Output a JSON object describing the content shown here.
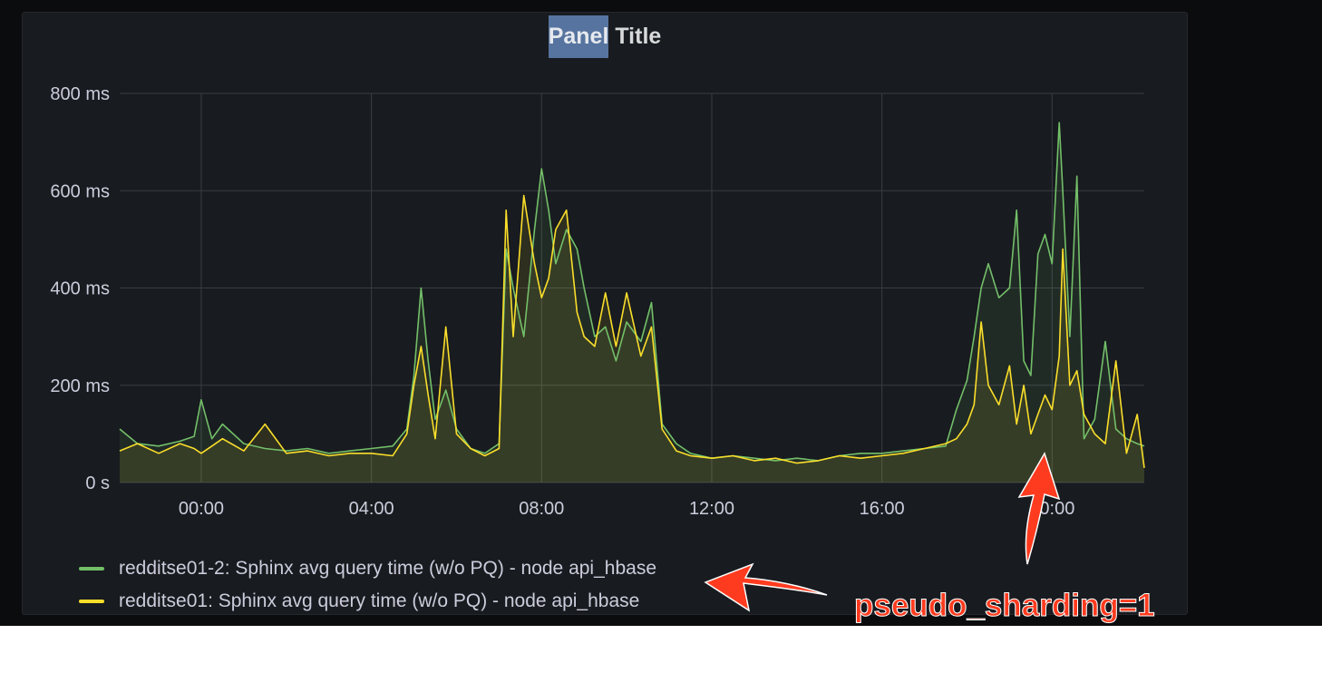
{
  "panel": {
    "title_highlight": "Panel",
    "title_rest": " Title"
  },
  "annotation": {
    "text": "pseudo_sharding=1",
    "color": "#ff3b1f"
  },
  "chart_data": {
    "type": "line",
    "y_unit": "ms",
    "ylim": [
      0,
      800
    ],
    "y_ticks": [
      {
        "value": 0,
        "label": "0 s"
      },
      {
        "value": 200,
        "label": "200 ms"
      },
      {
        "value": 400,
        "label": "400 ms"
      },
      {
        "value": 600,
        "label": "600 ms"
      },
      {
        "value": 800,
        "label": "800 ms"
      }
    ],
    "xlim": [
      "-01:55",
      "22:10"
    ],
    "x_ticks": [
      "00:00",
      "04:00",
      "08:00",
      "12:00",
      "16:00",
      "20:00"
    ],
    "grid": true,
    "fill": "area",
    "legend_position": "bottom-left",
    "series": [
      {
        "name": "redditse01-2: Sphinx avg query time (w/o PQ) - node api_hbase",
        "color": "#73bf69",
        "points": [
          [
            "-01:55",
            110
          ],
          [
            "-01:30",
            80
          ],
          [
            "-01:00",
            75
          ],
          [
            "-00:30",
            85
          ],
          [
            "-00:10",
            95
          ],
          [
            "00:00",
            170
          ],
          [
            "00:15",
            90
          ],
          [
            "00:30",
            120
          ],
          [
            "01:00",
            80
          ],
          [
            "01:30",
            70
          ],
          [
            "02:00",
            65
          ],
          [
            "02:30",
            70
          ],
          [
            "03:00",
            60
          ],
          [
            "03:30",
            65
          ],
          [
            "04:00",
            70
          ],
          [
            "04:30",
            75
          ],
          [
            "04:50",
            110
          ],
          [
            "05:00",
            220
          ],
          [
            "05:10",
            400
          ],
          [
            "05:20",
            250
          ],
          [
            "05:30",
            130
          ],
          [
            "05:45",
            190
          ],
          [
            "06:00",
            110
          ],
          [
            "06:20",
            70
          ],
          [
            "06:40",
            60
          ],
          [
            "07:00",
            80
          ],
          [
            "07:10",
            480
          ],
          [
            "07:20",
            400
          ],
          [
            "07:35",
            300
          ],
          [
            "07:50",
            520
          ],
          [
            "08:00",
            645
          ],
          [
            "08:10",
            560
          ],
          [
            "08:20",
            450
          ],
          [
            "08:35",
            520
          ],
          [
            "08:50",
            480
          ],
          [
            "09:00",
            400
          ],
          [
            "09:15",
            300
          ],
          [
            "09:30",
            320
          ],
          [
            "09:45",
            250
          ],
          [
            "10:00",
            330
          ],
          [
            "10:20",
            290
          ],
          [
            "10:35",
            370
          ],
          [
            "10:50",
            120
          ],
          [
            "11:10",
            80
          ],
          [
            "11:30",
            60
          ],
          [
            "12:00",
            50
          ],
          [
            "12:30",
            55
          ],
          [
            "13:00",
            50
          ],
          [
            "13:30",
            45
          ],
          [
            "14:00",
            50
          ],
          [
            "14:30",
            45
          ],
          [
            "15:00",
            55
          ],
          [
            "15:30",
            60
          ],
          [
            "16:00",
            60
          ],
          [
            "16:30",
            65
          ],
          [
            "17:00",
            70
          ],
          [
            "17:30",
            75
          ],
          [
            "17:45",
            150
          ],
          [
            "18:00",
            210
          ],
          [
            "18:10",
            300
          ],
          [
            "18:20",
            400
          ],
          [
            "18:30",
            450
          ],
          [
            "18:45",
            380
          ],
          [
            "19:00",
            400
          ],
          [
            "19:10",
            560
          ],
          [
            "19:20",
            250
          ],
          [
            "19:30",
            220
          ],
          [
            "19:40",
            470
          ],
          [
            "19:50",
            510
          ],
          [
            "20:00",
            450
          ],
          [
            "20:10",
            740
          ],
          [
            "20:15",
            600
          ],
          [
            "20:25",
            300
          ],
          [
            "20:35",
            630
          ],
          [
            "20:45",
            90
          ],
          [
            "21:00",
            130
          ],
          [
            "21:15",
            290
          ],
          [
            "21:30",
            110
          ],
          [
            "21:45",
            90
          ],
          [
            "22:00",
            80
          ],
          [
            "22:10",
            75
          ]
        ]
      },
      {
        "name": "redditse01: Sphinx avg query time (w/o PQ) - node api_hbase",
        "color": "#fade2a",
        "points": [
          [
            "-01:55",
            65
          ],
          [
            "-01:30",
            80
          ],
          [
            "-01:00",
            60
          ],
          [
            "-00:30",
            80
          ],
          [
            "-00:10",
            70
          ],
          [
            "00:00",
            60
          ],
          [
            "00:15",
            75
          ],
          [
            "00:30",
            90
          ],
          [
            "01:00",
            65
          ],
          [
            "01:30",
            120
          ],
          [
            "02:00",
            60
          ],
          [
            "02:30",
            65
          ],
          [
            "03:00",
            55
          ],
          [
            "03:30",
            60
          ],
          [
            "04:00",
            60
          ],
          [
            "04:30",
            55
          ],
          [
            "04:50",
            100
          ],
          [
            "05:00",
            200
          ],
          [
            "05:10",
            280
          ],
          [
            "05:20",
            180
          ],
          [
            "05:30",
            90
          ],
          [
            "05:45",
            320
          ],
          [
            "06:00",
            100
          ],
          [
            "06:20",
            70
          ],
          [
            "06:40",
            55
          ],
          [
            "07:00",
            70
          ],
          [
            "07:10",
            560
          ],
          [
            "07:20",
            300
          ],
          [
            "07:35",
            590
          ],
          [
            "07:50",
            450
          ],
          [
            "08:00",
            380
          ],
          [
            "08:10",
            420
          ],
          [
            "08:20",
            520
          ],
          [
            "08:35",
            560
          ],
          [
            "08:50",
            350
          ],
          [
            "09:00",
            300
          ],
          [
            "09:15",
            280
          ],
          [
            "09:30",
            390
          ],
          [
            "09:45",
            280
          ],
          [
            "10:00",
            390
          ],
          [
            "10:20",
            260
          ],
          [
            "10:35",
            320
          ],
          [
            "10:50",
            110
          ],
          [
            "11:10",
            65
          ],
          [
            "11:30",
            55
          ],
          [
            "12:00",
            50
          ],
          [
            "12:30",
            55
          ],
          [
            "13:00",
            45
          ],
          [
            "13:30",
            50
          ],
          [
            "14:00",
            40
          ],
          [
            "14:30",
            45
          ],
          [
            "15:00",
            55
          ],
          [
            "15:30",
            50
          ],
          [
            "16:00",
            55
          ],
          [
            "16:30",
            60
          ],
          [
            "17:00",
            70
          ],
          [
            "17:30",
            80
          ],
          [
            "17:45",
            90
          ],
          [
            "18:00",
            120
          ],
          [
            "18:10",
            160
          ],
          [
            "18:20",
            330
          ],
          [
            "18:30",
            200
          ],
          [
            "18:45",
            160
          ],
          [
            "19:00",
            240
          ],
          [
            "19:10",
            120
          ],
          [
            "19:20",
            200
          ],
          [
            "19:30",
            100
          ],
          [
            "19:40",
            140
          ],
          [
            "19:50",
            180
          ],
          [
            "20:00",
            150
          ],
          [
            "20:10",
            260
          ],
          [
            "20:15",
            480
          ],
          [
            "20:25",
            200
          ],
          [
            "20:35",
            230
          ],
          [
            "20:45",
            140
          ],
          [
            "21:00",
            100
          ],
          [
            "21:15",
            80
          ],
          [
            "21:30",
            250
          ],
          [
            "21:45",
            60
          ],
          [
            "22:00",
            140
          ],
          [
            "22:10",
            30
          ]
        ]
      }
    ]
  }
}
